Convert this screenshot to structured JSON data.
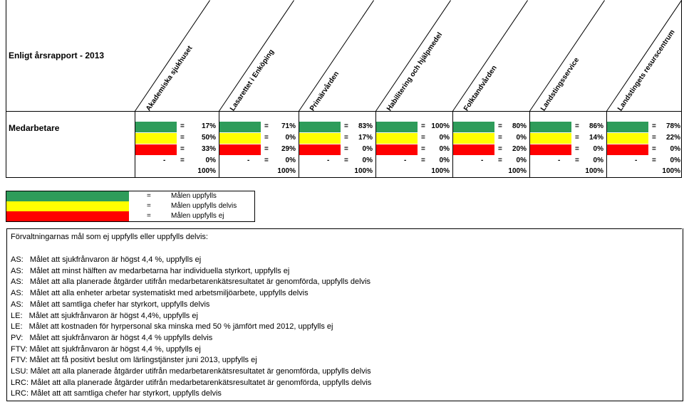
{
  "report": {
    "title": "Enligt årsrapport - 2013",
    "row_label": "Medarbetare",
    "columns": [
      {
        "name": "Akademiska sjukhuset",
        "green": "17%",
        "yellow": "50%",
        "red": "33%",
        "dash": "0%",
        "total": "100%"
      },
      {
        "name": "Lasarettet i Enköping",
        "green": "71%",
        "yellow": "0%",
        "red": "29%",
        "dash": "0%",
        "total": "100%"
      },
      {
        "name": "Primärvården",
        "green": "83%",
        "yellow": "17%",
        "red": "0%",
        "dash": "0%",
        "total": "100%"
      },
      {
        "name": "Habilitering och hjälpmedel",
        "green": "100%",
        "yellow": "0%",
        "red": "0%",
        "dash": "0%",
        "total": "100%"
      },
      {
        "name": "Folktandvården",
        "green": "80%",
        "yellow": "0%",
        "red": "20%",
        "dash": "0%",
        "total": "100%"
      },
      {
        "name": "Landstingsservice",
        "green": "86%",
        "yellow": "14%",
        "red": "0%",
        "dash": "0%",
        "total": "100%"
      },
      {
        "name": "Landstingets resurscentrum",
        "green": "78%",
        "yellow": "22%",
        "red": "0%",
        "dash": "0%",
        "total": "100%"
      }
    ],
    "eq": "=",
    "dash": "-"
  },
  "legend": {
    "eq": "=",
    "items": [
      {
        "color": "#2e9c5a",
        "label": "Målen uppfylls"
      },
      {
        "color": "#ffff00",
        "label": "Målen uppfylls delvis"
      },
      {
        "color": "#ff0000",
        "label": "Målen uppfylls ej"
      }
    ]
  },
  "notes": {
    "heading": "Förvaltningarnas mål som ej uppfylls eller uppfylls delvis:",
    "lines": [
      "AS:   Målet att sjukfrånvaron är högst 4,4 %, uppfylls ej",
      "AS:   Målet att minst hälften av medarbetarna har individuella styrkort, uppfylls ej",
      "AS:   Målet att alla planerade åtgärder utifrån medarbetarenkätsresultatet är genomförda, uppfylls delvis",
      "AS:   Målet att alla enheter arbetar systematiskt med arbetsmiljöarbete, uppfylls delvis",
      "AS:   Målet att samtliga chefer har styrkort, uppfylls delvis",
      "LE:   Målet att sjukfrånvaron är högst 4,4%, uppfylls ej",
      "LE:   Målet att kostnaden för hyrpersonal ska minska med 50 % jämfört med 2012, uppfylls ej",
      "PV:   Målet att sjukfrånvaron är högst 4,4 % uppfylls delvis",
      "FTV: Målet att sjukfrånvaron är högst 4,4 %, uppfylls ej",
      "FTV: Målet att få positivt beslut om lärlingstjänster juni 2013, uppfylls ej",
      "LSU: Målet att alla planerade åtgärder utifrån medarbetarenkätsresultatet är genomförda, uppfylls delvis",
      "LRC: Målet att alla planerade åtgärder utifrån medarbetarenkätsresultatet är genomförda, uppfylls delvis",
      "LRC: Målet att att samtliga chefer har styrkort, uppfylls delvis"
    ]
  }
}
